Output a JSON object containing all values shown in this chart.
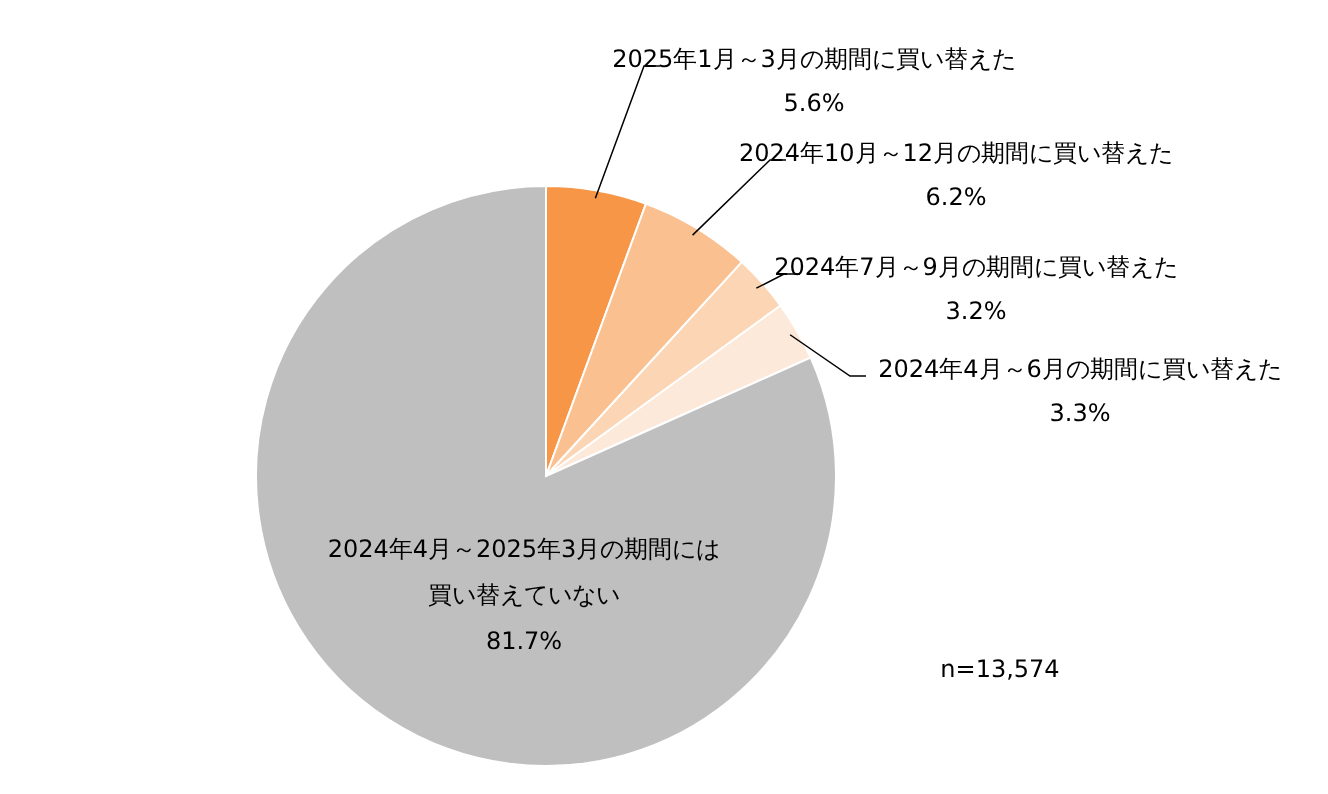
{
  "chart_data": {
    "type": "pie",
    "categories": [
      "2025年1月～3月の期間に買い替えた",
      "2024年10月～12月の期間に買い替えた",
      "2024年7月～9月の期間に買い替えた",
      "2024年4月～6月の期間に買い替えた",
      "2024年4月～2025年3月の期間には買い替えていない"
    ],
    "values": [
      5.6,
      6.2,
      3.2,
      3.3,
      81.7
    ],
    "colors": [
      "#f79646",
      "#fac090",
      "#fcd5b5",
      "#fde9d9",
      "#bfbfbf"
    ],
    "value_labels": [
      "5.6%",
      "6.2%",
      "3.2%",
      "3.3%",
      "81.7%"
    ],
    "annotations": [
      "n=13,574"
    ]
  }
}
